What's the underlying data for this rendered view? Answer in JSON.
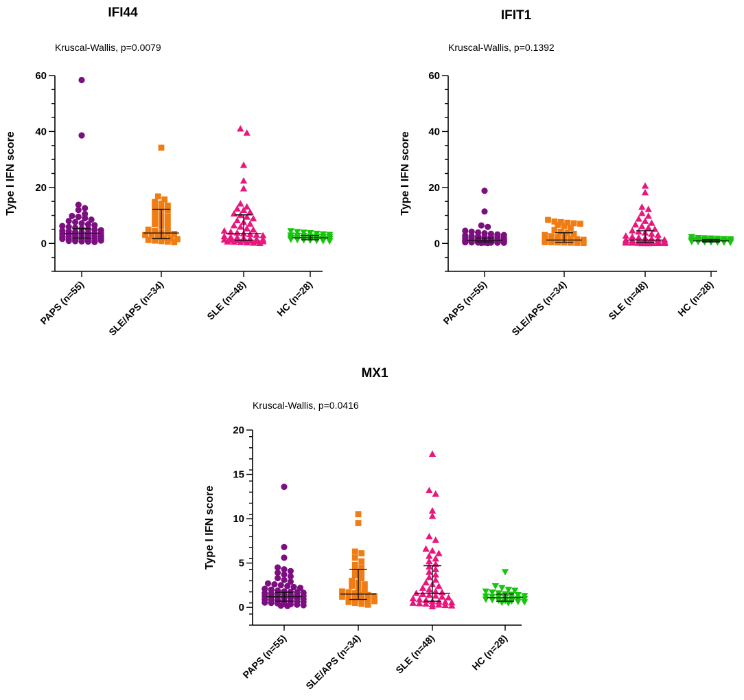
{
  "chart_data": [
    {
      "type": "scatter",
      "title": "IFI44",
      "annotation": "Kruscal-Wallis, p=0.0079",
      "ylabel": "Type I IFN score",
      "ylim": [
        -10,
        60
      ],
      "yticks": [
        0,
        20,
        40,
        60
      ],
      "categories": [
        "PAPS (n=55)",
        "SLE/APS (n=34)",
        "SLE (n=48)",
        "HC (n=28)"
      ],
      "series": [
        {
          "name": "PAPS (n=55)",
          "color": "#7b0f80",
          "marker": "circle",
          "median": 3.6,
          "iqr": [
            1.9,
            5.3
          ],
          "values": [
            58.4,
            38.6,
            13.8,
            12.6,
            11.9,
            10.5,
            9.8,
            9.5,
            9.0,
            8.5,
            8.0,
            7.6,
            7.2,
            6.8,
            6.5,
            6.2,
            5.9,
            5.6,
            5.3,
            5.1,
            4.9,
            4.7,
            4.5,
            4.3,
            4.1,
            3.9,
            3.7,
            3.6,
            3.5,
            3.4,
            3.2,
            3.0,
            2.9,
            2.8,
            2.6,
            2.5,
            2.4,
            2.3,
            2.2,
            2.1,
            1.9,
            1.8,
            1.7,
            1.6,
            1.5,
            1.4,
            1.3,
            1.2,
            1.1,
            1.0,
            0.9,
            0.8,
            0.7,
            0.6,
            0.5
          ]
        },
        {
          "name": "SLE/APS (n=34)",
          "color": "#f07d14",
          "marker": "square",
          "median": 3.7,
          "iqr": [
            1.7,
            12.2
          ],
          "values": [
            34.2,
            16.8,
            15.7,
            14.8,
            14.2,
            13.5,
            13.0,
            12.4,
            11.8,
            10.9,
            10.2,
            9.6,
            8.8,
            8.1,
            7.5,
            6.8,
            6.2,
            5.6,
            4.9,
            4.4,
            3.9,
            3.7,
            3.4,
            3.0,
            2.6,
            2.3,
            2.0,
            1.7,
            1.5,
            1.2,
            1.0,
            0.8,
            0.6,
            0.4
          ]
        },
        {
          "name": "SLE (n=48)",
          "color": "#e8177d",
          "marker": "triangle",
          "median": 3.5,
          "iqr": [
            1.1,
            10.2
          ],
          "values": [
            41.0,
            39.5,
            28.0,
            22.4,
            19.6,
            14.2,
            13.1,
            12.4,
            11.9,
            11.2,
            10.6,
            10.1,
            9.5,
            8.9,
            8.2,
            7.6,
            7.0,
            6.4,
            5.9,
            5.3,
            4.9,
            4.5,
            4.1,
            3.8,
            3.5,
            3.3,
            3.0,
            2.8,
            2.5,
            2.3,
            2.1,
            1.9,
            1.7,
            1.5,
            1.4,
            1.3,
            1.2,
            1.1,
            1.0,
            0.9,
            0.8,
            0.7,
            0.6,
            0.5,
            0.4,
            0.3,
            0.2,
            0.1
          ]
        },
        {
          "name": "HC (n=28)",
          "color": "#19c40f",
          "marker": "triangle-down",
          "median": 2.0,
          "iqr": [
            1.3,
            2.8
          ],
          "values": [
            4.4,
            4.1,
            3.9,
            3.7,
            3.5,
            3.3,
            3.1,
            2.9,
            2.8,
            2.7,
            2.5,
            2.4,
            2.3,
            2.2,
            2.1,
            2.0,
            1.9,
            1.8,
            1.7,
            1.6,
            1.5,
            1.4,
            1.3,
            1.2,
            1.1,
            1.0,
            0.9,
            0.8
          ]
        }
      ]
    },
    {
      "type": "scatter",
      "title": "IFIT1",
      "annotation": "Kruscal-Wallis, p=0.1392",
      "ylabel": "Type I IFN score",
      "ylim": [
        -10,
        60
      ],
      "yticks": [
        0,
        20,
        40,
        60
      ],
      "categories": [
        "PAPS (n=55)",
        "SLE/APS (n=34)",
        "SLE (n=48)",
        "HC (n=28)"
      ],
      "series": [
        {
          "name": "PAPS (n=55)",
          "color": "#7b0f80",
          "marker": "circle",
          "median": 1.1,
          "iqr": [
            0.5,
            1.9
          ],
          "values": [
            18.8,
            11.4,
            6.4,
            5.9,
            4.5,
            4.2,
            3.9,
            3.6,
            3.4,
            3.2,
            3.0,
            2.8,
            2.6,
            2.5,
            2.4,
            2.3,
            2.2,
            2.1,
            2.0,
            1.9,
            1.8,
            1.7,
            1.6,
            1.5,
            1.4,
            1.3,
            1.25,
            1.2,
            1.15,
            1.1,
            1.05,
            1.0,
            0.95,
            0.9,
            0.85,
            0.8,
            0.75,
            0.7,
            0.65,
            0.6,
            0.55,
            0.5,
            0.48,
            0.45,
            0.42,
            0.4,
            0.38,
            0.35,
            0.32,
            0.3,
            0.28,
            0.25,
            0.22,
            0.2,
            0.15
          ]
        },
        {
          "name": "SLE/APS (n=34)",
          "color": "#f07d14",
          "marker": "square",
          "median": 1.2,
          "iqr": [
            0.4,
            3.8
          ],
          "values": [
            8.4,
            7.8,
            7.6,
            7.4,
            7.2,
            7.0,
            6.6,
            6.2,
            5.6,
            4.8,
            4.2,
            3.8,
            3.4,
            3.0,
            2.6,
            2.3,
            2.0,
            1.7,
            1.5,
            1.3,
            1.2,
            1.0,
            0.9,
            0.8,
            0.7,
            0.6,
            0.5,
            0.45,
            0.4,
            0.35,
            0.3,
            0.25,
            0.2,
            0.15
          ]
        },
        {
          "name": "SLE (n=48)",
          "color": "#e8177d",
          "marker": "triangle",
          "median": 1.2,
          "iqr": [
            0.3,
            4.5
          ],
          "values": [
            20.6,
            18.2,
            13.0,
            12.2,
            10.8,
            9.8,
            8.8,
            8.0,
            7.3,
            6.7,
            6.1,
            5.6,
            5.1,
            4.6,
            4.2,
            3.8,
            3.4,
            3.0,
            2.7,
            2.4,
            2.1,
            1.9,
            1.7,
            1.5,
            1.3,
            1.2,
            1.1,
            1.0,
            0.9,
            0.8,
            0.7,
            0.6,
            0.55,
            0.5,
            0.45,
            0.4,
            0.35,
            0.3,
            0.27,
            0.24,
            0.2,
            0.18,
            0.15,
            0.12,
            0.1,
            0.08,
            0.05,
            0.03
          ]
        },
        {
          "name": "HC (n=28)",
          "color": "#19c40f",
          "marker": "triangle-down",
          "median": 0.9,
          "iqr": [
            0.5,
            1.4
          ],
          "values": [
            2.3,
            2.0,
            1.9,
            1.8,
            1.7,
            1.6,
            1.5,
            1.4,
            1.35,
            1.3,
            1.2,
            1.1,
            1.05,
            1.0,
            0.95,
            0.9,
            0.85,
            0.8,
            0.75,
            0.7,
            0.65,
            0.6,
            0.55,
            0.5,
            0.45,
            0.4,
            0.35,
            0.3
          ]
        }
      ]
    },
    {
      "type": "scatter",
      "title": "MX1",
      "annotation": "Kruscal-Wallis, p=0.0416",
      "ylabel": "Type I IFN score",
      "ylim": [
        -2,
        20
      ],
      "yticks": [
        0,
        5,
        10,
        15,
        20
      ],
      "categories": [
        "PAPS (n=55)",
        "SLE/APS (n=34)",
        "SLE (n=48)",
        "HC (n=28)"
      ],
      "series": [
        {
          "name": "PAPS (n=55)",
          "color": "#7b0f80",
          "marker": "circle",
          "median": 1.2,
          "iqr": [
            0.7,
            1.7
          ],
          "values": [
            13.6,
            6.8,
            5.6,
            4.5,
            4.3,
            4.1,
            3.9,
            3.7,
            3.5,
            3.3,
            3.1,
            2.9,
            2.7,
            2.6,
            2.5,
            2.4,
            2.3,
            2.2,
            2.1,
            2.0,
            1.9,
            1.8,
            1.75,
            1.7,
            1.65,
            1.6,
            1.55,
            1.5,
            1.45,
            1.4,
            1.35,
            1.3,
            1.25,
            1.2,
            1.15,
            1.1,
            1.05,
            1.0,
            0.95,
            0.9,
            0.85,
            0.8,
            0.75,
            0.7,
            0.65,
            0.6,
            0.55,
            0.5,
            0.45,
            0.4,
            0.35,
            0.3,
            0.25,
            0.2,
            0.15
          ]
        },
        {
          "name": "SLE/APS (n=34)",
          "color": "#f07d14",
          "marker": "square",
          "median": 1.5,
          "iqr": [
            0.9,
            4.3
          ],
          "values": [
            10.5,
            9.5,
            6.3,
            6.1,
            5.6,
            5.2,
            4.8,
            4.5,
            4.2,
            3.9,
            3.6,
            3.3,
            3.0,
            2.8,
            2.6,
            2.4,
            2.2,
            2.0,
            1.8,
            1.7,
            1.6,
            1.5,
            1.4,
            1.3,
            1.2,
            1.1,
            1.0,
            0.9,
            0.8,
            0.7,
            0.6,
            0.5,
            0.4,
            0.3
          ]
        },
        {
          "name": "SLE (n=48)",
          "color": "#e8177d",
          "marker": "triangle",
          "median": 1.6,
          "iqr": [
            0.7,
            4.7
          ],
          "values": [
            17.3,
            13.2,
            12.8,
            10.9,
            10.3,
            8.0,
            7.6,
            6.6,
            6.4,
            6.1,
            5.8,
            5.5,
            5.2,
            4.9,
            4.6,
            4.3,
            4.0,
            3.7,
            3.4,
            3.1,
            2.8,
            2.6,
            2.4,
            2.2,
            2.0,
            1.8,
            1.7,
            1.6,
            1.5,
            1.4,
            1.3,
            1.2,
            1.1,
            1.0,
            0.9,
            0.8,
            0.7,
            0.65,
            0.6,
            0.55,
            0.5,
            0.45,
            0.4,
            0.35,
            0.3,
            0.25,
            0.2,
            0.1
          ]
        },
        {
          "name": "HC (n=28)",
          "color": "#19c40f",
          "marker": "triangle-down",
          "median": 1.1,
          "iqr": [
            0.7,
            1.5
          ],
          "values": [
            4.0,
            2.4,
            2.2,
            2.0,
            1.9,
            1.8,
            1.7,
            1.6,
            1.5,
            1.45,
            1.4,
            1.3,
            1.25,
            1.2,
            1.15,
            1.1,
            1.05,
            1.0,
            0.95,
            0.9,
            0.85,
            0.8,
            0.75,
            0.7,
            0.65,
            0.6,
            0.55,
            0.5
          ]
        }
      ]
    }
  ]
}
